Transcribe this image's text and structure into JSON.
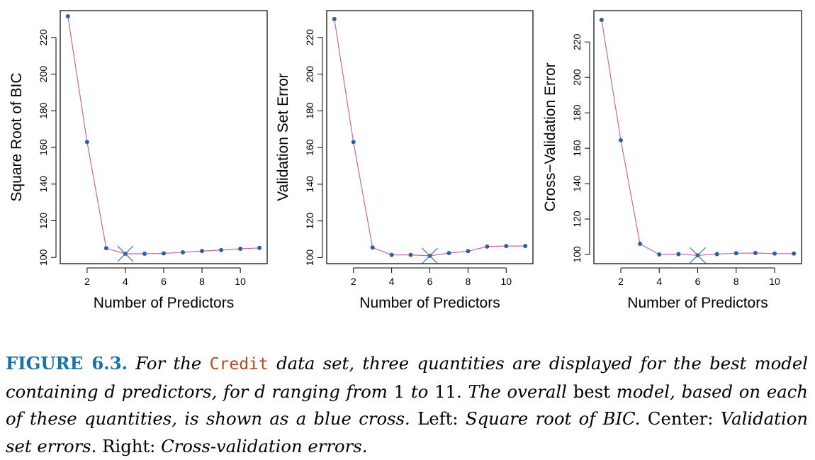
{
  "chart_data": [
    {
      "type": "line",
      "xlabel": "Number of Predictors",
      "ylabel": "Square Root of BIC",
      "x": [
        1,
        2,
        3,
        4,
        5,
        6,
        7,
        8,
        9,
        10,
        11
      ],
      "y": [
        231.5,
        163.0,
        105.0,
        102.0,
        102.0,
        102.2,
        102.8,
        103.5,
        104.0,
        104.7,
        105.2
      ],
      "best": 4,
      "xticks": [
        2,
        4,
        6,
        8,
        10
      ],
      "yticks": [
        100,
        120,
        140,
        160,
        180,
        200,
        220
      ],
      "xlim": [
        0.6,
        11.4
      ],
      "ylim": [
        96.6,
        234.6
      ],
      "line_color": "#cc6699",
      "point_color": "#2f5f9e",
      "cross_color": "#3d6fb8"
    },
    {
      "type": "line",
      "xlabel": "Number of Predictors",
      "ylabel": "Validation Set Error",
      "x": [
        1,
        2,
        3,
        4,
        5,
        6,
        7,
        8,
        9,
        10,
        11
      ],
      "y": [
        230.0,
        163.0,
        105.5,
        101.5,
        101.5,
        101.0,
        102.5,
        103.5,
        106.0,
        106.3,
        106.3
      ],
      "best": 6,
      "xticks": [
        2,
        4,
        6,
        8,
        10
      ],
      "yticks": [
        100,
        120,
        140,
        160,
        180,
        200,
        220
      ],
      "xlim": [
        0.6,
        11.4
      ],
      "ylim": [
        96.7,
        234.6
      ],
      "line_color": "#cc6699",
      "point_color": "#2f5f9e",
      "cross_color": "#3d6fb8"
    },
    {
      "type": "line",
      "xlabel": "Number of Predictors",
      "ylabel": "Cross−Validation Error",
      "x": [
        1,
        2,
        3,
        4,
        5,
        6,
        7,
        8,
        9,
        10,
        11
      ],
      "y": [
        232.5,
        164.5,
        106.0,
        100.0,
        100.2,
        99.5,
        100.2,
        100.7,
        100.8,
        100.5,
        100.5
      ],
      "best": 6,
      "xticks": [
        2,
        4,
        6,
        8,
        10
      ],
      "yticks": [
        100,
        120,
        140,
        160,
        180,
        200,
        220
      ],
      "xlim": [
        0.6,
        11.4
      ],
      "ylim": [
        94.8,
        237.7
      ],
      "line_color": "#cc6699",
      "point_color": "#2f5f9e",
      "cross_color": "#3d6fb8"
    }
  ],
  "caption": {
    "label": "FIGURE 6.3.",
    "t1": "For the",
    "code": "Credit",
    "t2": "data set, three quantities are displayed for the best model containing d predictors, for d ranging from",
    "n1": "1",
    "t3": "to",
    "n2": "11.",
    "t4": "The overall",
    "t5": "best",
    "t6": "model, based on each of these quantities, is shown as a blue cross.",
    "t7": "Left:",
    "t8": "Square root of BIC.",
    "t9": "Center:",
    "t10": "Validation set errors.",
    "t11": "Right:",
    "t12": "Cross-validation errors."
  }
}
